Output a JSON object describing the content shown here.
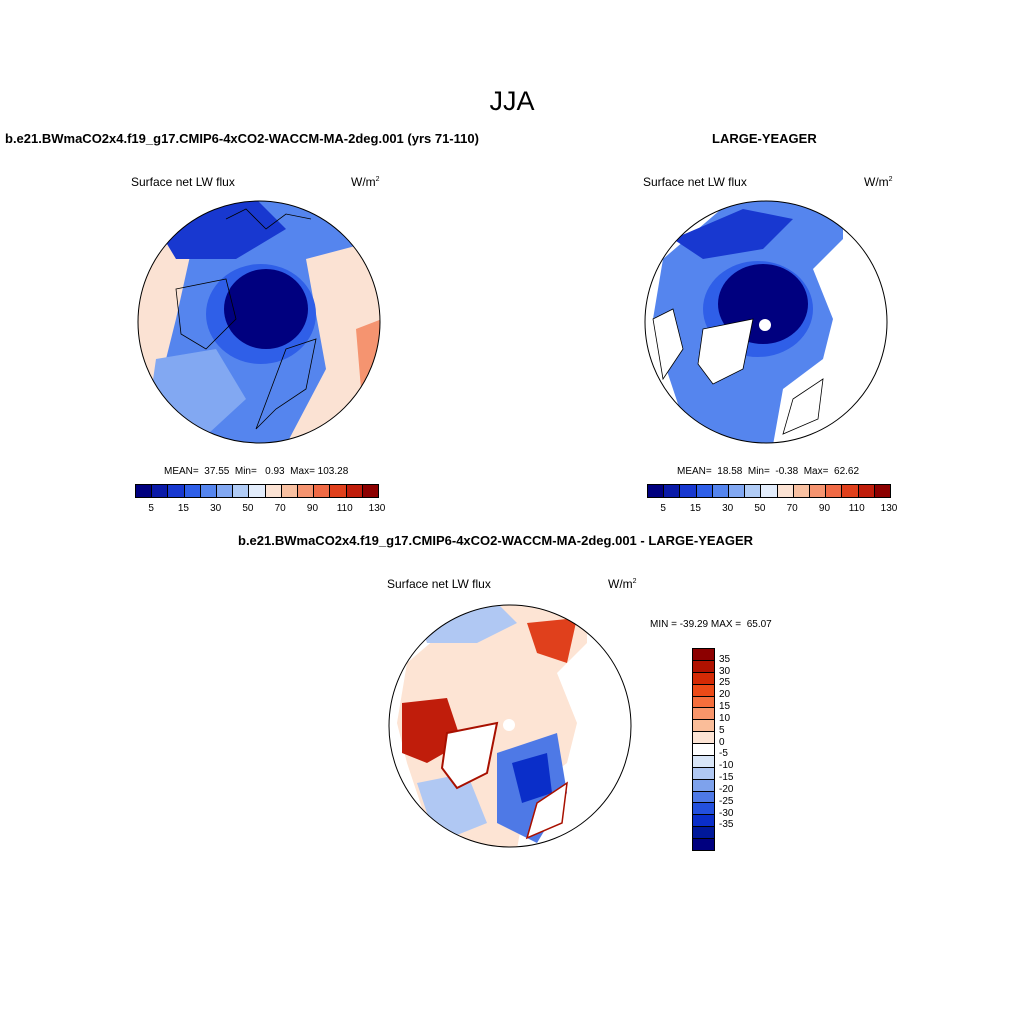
{
  "page": {
    "season": "JJA"
  },
  "panels": [
    {
      "title": "b.e21.BWmaCO2x4.f19_g17.CMIP6-4xCO2-WACCM-MA-2deg.001 (yrs 71-110)",
      "variable": "Surface net LW flux",
      "units_base": "W/m",
      "units_sup": "2",
      "stats": "MEAN=  37.55  Min=   0.93  Max= 103.28",
      "stats_values": {
        "mean": 37.55,
        "min": 0.93,
        "max": 103.28
      }
    },
    {
      "title": "LARGE-YEAGER",
      "variable": "Surface net LW flux",
      "units_base": "W/m",
      "units_sup": "2",
      "stats": "MEAN=  18.58  Min=  -0.38  Max=  62.62",
      "stats_values": {
        "mean": 18.58,
        "min": -0.38,
        "max": 62.62
      }
    },
    {
      "title": "b.e21.BWmaCO2x4.f19_g17.CMIP6-4xCO2-WACCM-MA-2deg.001 - LARGE-YEAGER",
      "variable": "Surface net LW flux",
      "units_base": "W/m",
      "units_sup": "2",
      "stats": "MIN = -39.29 MAX =  65.07",
      "stats_values": {
        "min": -39.29,
        "max": 65.07
      }
    }
  ],
  "colorbars": {
    "absolute": {
      "labels": [
        "5",
        "15",
        "30",
        "50",
        "70",
        "90",
        "110",
        "130"
      ],
      "colors": [
        "#00007f",
        "#0a1aa8",
        "#1838d0",
        "#2f5fe8",
        "#5585ee",
        "#82a8f2",
        "#b1ccf6",
        "#e2ecfb",
        "#fbe2d3",
        "#f8c0a1",
        "#f59470",
        "#f06a45",
        "#e0401c",
        "#c01d0b",
        "#8c0000"
      ]
    },
    "difference": {
      "labels": [
        "35",
        "30",
        "25",
        "20",
        "15",
        "10",
        "5",
        "0",
        "-5",
        "-10",
        "-15",
        "-20",
        "-25",
        "-30",
        "-35"
      ],
      "colors": [
        "#8c0000",
        "#b01200",
        "#d42a05",
        "#ec4a17",
        "#f56e3c",
        "#f8956a",
        "#fabd99",
        "#fde4d4",
        "#ffffff",
        "#d9e6f8",
        "#b0c8f3",
        "#7ea2ec",
        "#4e79e6",
        "#2350dd",
        "#0a2ec9",
        "#00189a",
        "#00007f"
      ]
    }
  },
  "map_colors": {
    "deep_blue": "#00007f",
    "blue": "#1838d0",
    "mid_blue": "#5585ee",
    "light_blue": "#b1ccf6",
    "pale_red": "#fbe2d3",
    "light_red": "#f8c0a1",
    "red": "#e0401c",
    "dark_red": "#a81000",
    "land": "#ffffff"
  }
}
